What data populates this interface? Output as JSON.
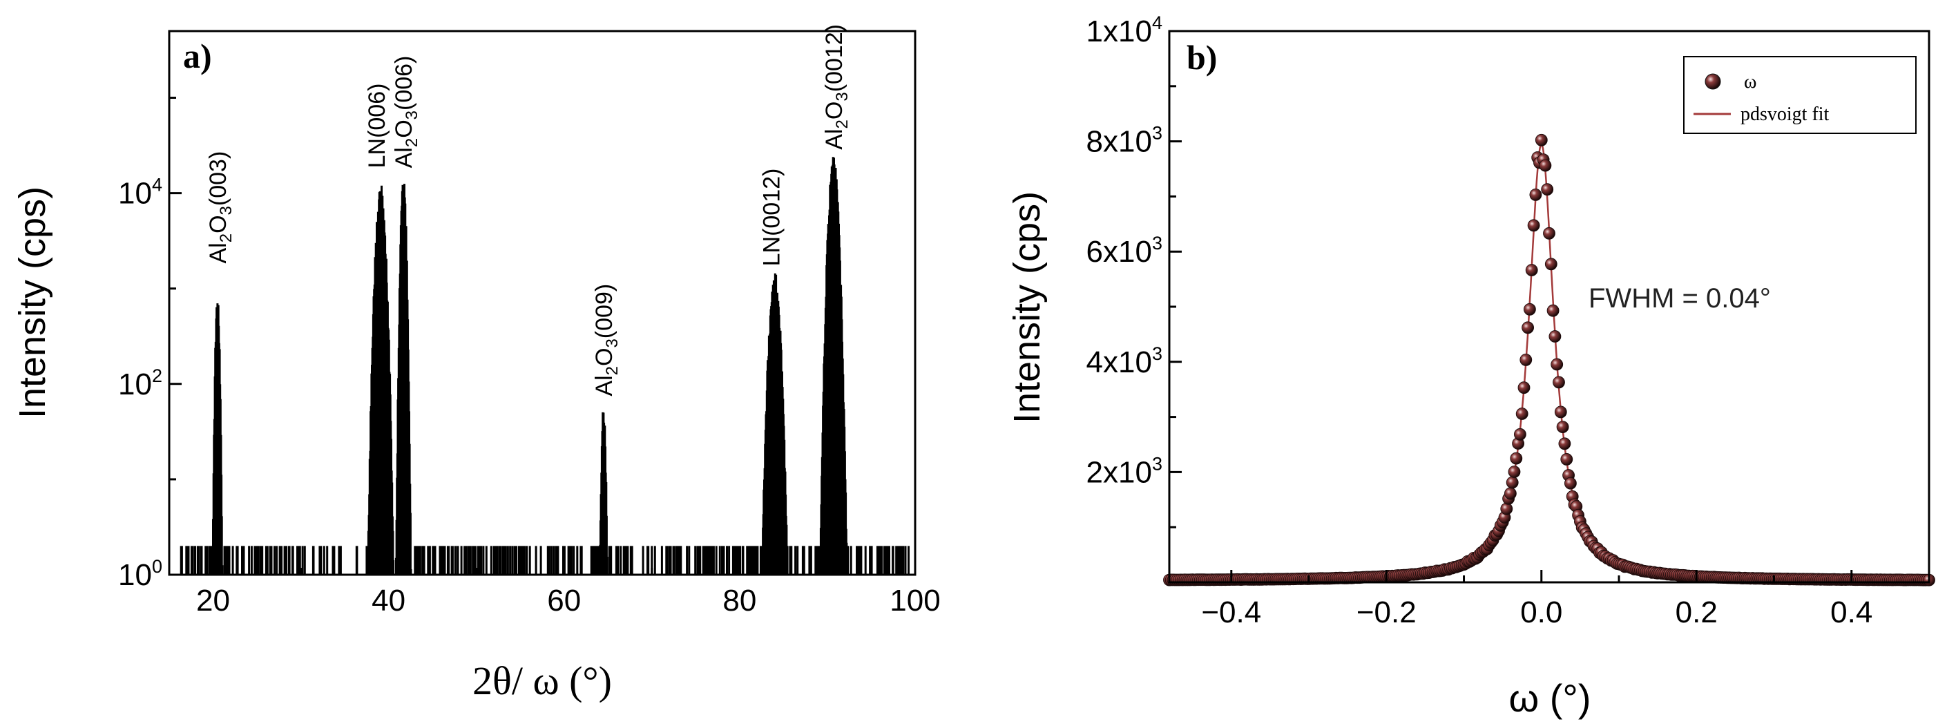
{
  "chart_data": [
    {
      "panel_label": "a)",
      "type": "line",
      "y_scale": "log",
      "xlabel": "2θ/ ω (°)",
      "ylabel": "Intensity (cps)",
      "xlim": [
        15,
        100
      ],
      "ylim": [
        1,
        500000
      ],
      "x_tick_labels": [
        {
          "value": 20,
          "label": "20"
        },
        {
          "value": 40,
          "label": "40"
        },
        {
          "value": 60,
          "label": "60"
        },
        {
          "value": 80,
          "label": "80"
        },
        {
          "value": 100,
          "label": "100"
        }
      ],
      "y_tick_labels": [
        {
          "value": 1,
          "base": "10",
          "exp": "0"
        },
        {
          "value": 100,
          "base": "10",
          "exp": "2"
        },
        {
          "value": 10000,
          "base": "10",
          "exp": "4"
        }
      ],
      "peaks": [
        {
          "x": 20.5,
          "y": 700,
          "width": 0.25
        },
        {
          "x": 39.1,
          "y": 10000,
          "width": 0.7
        },
        {
          "x": 41.7,
          "y": 12000,
          "width": 0.35
        },
        {
          "x": 64.5,
          "y": 50,
          "width": 0.25
        },
        {
          "x": 84.0,
          "y": 1200,
          "width": 0.8
        },
        {
          "x": 90.7,
          "y": 20000,
          "width": 0.7
        }
      ],
      "noise_level": 2,
      "annotations": [
        {
          "parts": [
            [
              "Al",
              ""
            ],
            [
              "2",
              "sub"
            ],
            [
              "O",
              ""
            ],
            [
              "3",
              "sub"
            ],
            [
              "(003)",
              ""
            ]
          ],
          "x": 20.5,
          "y": 1600
        },
        {
          "parts": [
            [
              "LN(006)",
              ""
            ]
          ],
          "x": 38.6,
          "y": 16000
        },
        {
          "parts": [
            [
              "Al",
              ""
            ],
            [
              "2",
              "sub"
            ],
            [
              "O",
              ""
            ],
            [
              "3",
              "sub"
            ],
            [
              "(006)",
              ""
            ]
          ],
          "x": 41.7,
          "y": 16000
        },
        {
          "parts": [
            [
              "Al",
              ""
            ],
            [
              "2",
              "sub"
            ],
            [
              "O",
              ""
            ],
            [
              "3",
              "sub"
            ],
            [
              "(009)",
              ""
            ]
          ],
          "x": 64.5,
          "y": 65
        },
        {
          "parts": [
            [
              "LN(0012)",
              ""
            ]
          ],
          "x": 83.6,
          "y": 1500
        },
        {
          "parts": [
            [
              "Al",
              ""
            ],
            [
              "2",
              "sub"
            ],
            [
              "O",
              ""
            ],
            [
              "3",
              "sub"
            ],
            [
              "(0012)",
              ""
            ]
          ],
          "x": 90.7,
          "y": 25000
        }
      ]
    },
    {
      "panel_label": "b)",
      "type": "scatter",
      "xlabel": "ω (°)",
      "ylabel": "Intensity (cps)",
      "xlim": [
        -0.48,
        0.5
      ],
      "ylim": [
        0,
        10000
      ],
      "x_tick_labels": [
        {
          "value": -0.4,
          "label": "−0.4"
        },
        {
          "value": -0.2,
          "label": "−0.2"
        },
        {
          "value": 0.0,
          "label": "0.0"
        },
        {
          "value": 0.2,
          "label": "0.2"
        },
        {
          "value": 0.4,
          "label": "0.4"
        }
      ],
      "y_tick_labels": [
        {
          "value": 2000,
          "base": "2x10",
          "exp": "3"
        },
        {
          "value": 4000,
          "base": "4x10",
          "exp": "3"
        },
        {
          "value": 6000,
          "base": "6x10",
          "exp": "3"
        },
        {
          "value": 8000,
          "base": "8x10",
          "exp": "3"
        },
        {
          "value": 10000,
          "base": "1x10",
          "exp": "4"
        }
      ],
      "fit": {
        "center": 0.0,
        "peak": 7950,
        "hwhm": 0.02,
        "background": 30
      },
      "series": [
        {
          "name": "ω",
          "marker": "sphere",
          "color": "#6b2a2a"
        },
        {
          "name": "pdsvoigt fit",
          "color": "#a33a3a"
        }
      ],
      "legend_position": "top-right",
      "annotation": "FWHM = 0.04°"
    }
  ]
}
